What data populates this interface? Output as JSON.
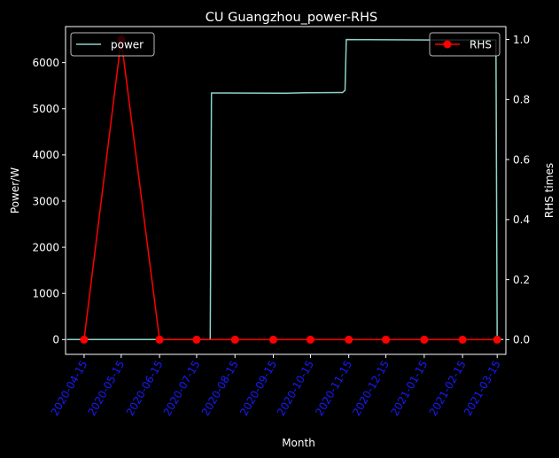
{
  "chart_data": {
    "type": "line",
    "title": "CU Guangzhou_power-RHS",
    "xlabel": "Month",
    "ylabel_left": "Power/W",
    "ylabel_right": "RHS times",
    "x_ticks": [
      "2020-04-15",
      "2020-05-15",
      "2020-06-15",
      "2020-07-15",
      "2020-08-15",
      "2020-09-15",
      "2020-10-15",
      "2020-11-15",
      "2020-12-15",
      "2021-01-15",
      "2021-02-15",
      "2021-03-15"
    ],
    "x_range": [
      "2020-03-31",
      "2021-03-22"
    ],
    "y_left_ticks": [
      0,
      1000,
      2000,
      3000,
      4000,
      5000,
      6000
    ],
    "y_left_range": [
      -320,
      6780
    ],
    "y_right_ticks": [
      "0.0",
      "0.2",
      "0.4",
      "0.6",
      "0.8",
      "1.0"
    ],
    "y_right_range": [
      -0.049,
      1.043
    ],
    "colors": {
      "background": "#000000",
      "text": "#ffffff",
      "tick_label_x": "#1a1aff",
      "power": "#8dd3c7",
      "rhs": "#ff0000"
    },
    "series": [
      {
        "name": "power",
        "axis": "left",
        "points": [
          [
            "2020-04-01",
            0
          ],
          [
            "2020-07-26",
            0
          ],
          [
            "2020-07-27",
            5340
          ],
          [
            "2020-09-25",
            5335
          ],
          [
            "2020-10-10",
            5345
          ],
          [
            "2020-11-10",
            5350
          ],
          [
            "2020-11-12",
            5400
          ],
          [
            "2020-11-13",
            6500
          ],
          [
            "2021-01-20",
            6490
          ],
          [
            "2021-03-14",
            6490
          ],
          [
            "2021-03-15",
            0
          ],
          [
            "2021-03-20",
            0
          ]
        ]
      },
      {
        "name": "RHS",
        "axis": "right",
        "points": [
          [
            "2020-04-15",
            0
          ],
          [
            "2020-05-15",
            1
          ],
          [
            "2020-06-15",
            0
          ],
          [
            "2020-07-15",
            0
          ],
          [
            "2020-08-15",
            0
          ],
          [
            "2020-09-15",
            0
          ],
          [
            "2020-10-15",
            0
          ],
          [
            "2020-11-15",
            0
          ],
          [
            "2020-12-15",
            0
          ],
          [
            "2021-01-15",
            0
          ],
          [
            "2021-02-15",
            0
          ],
          [
            "2021-03-15",
            0
          ]
        ]
      }
    ],
    "legends": [
      {
        "position": "top-left",
        "entry": "power"
      },
      {
        "position": "top-right",
        "entry": "RHS"
      }
    ]
  }
}
